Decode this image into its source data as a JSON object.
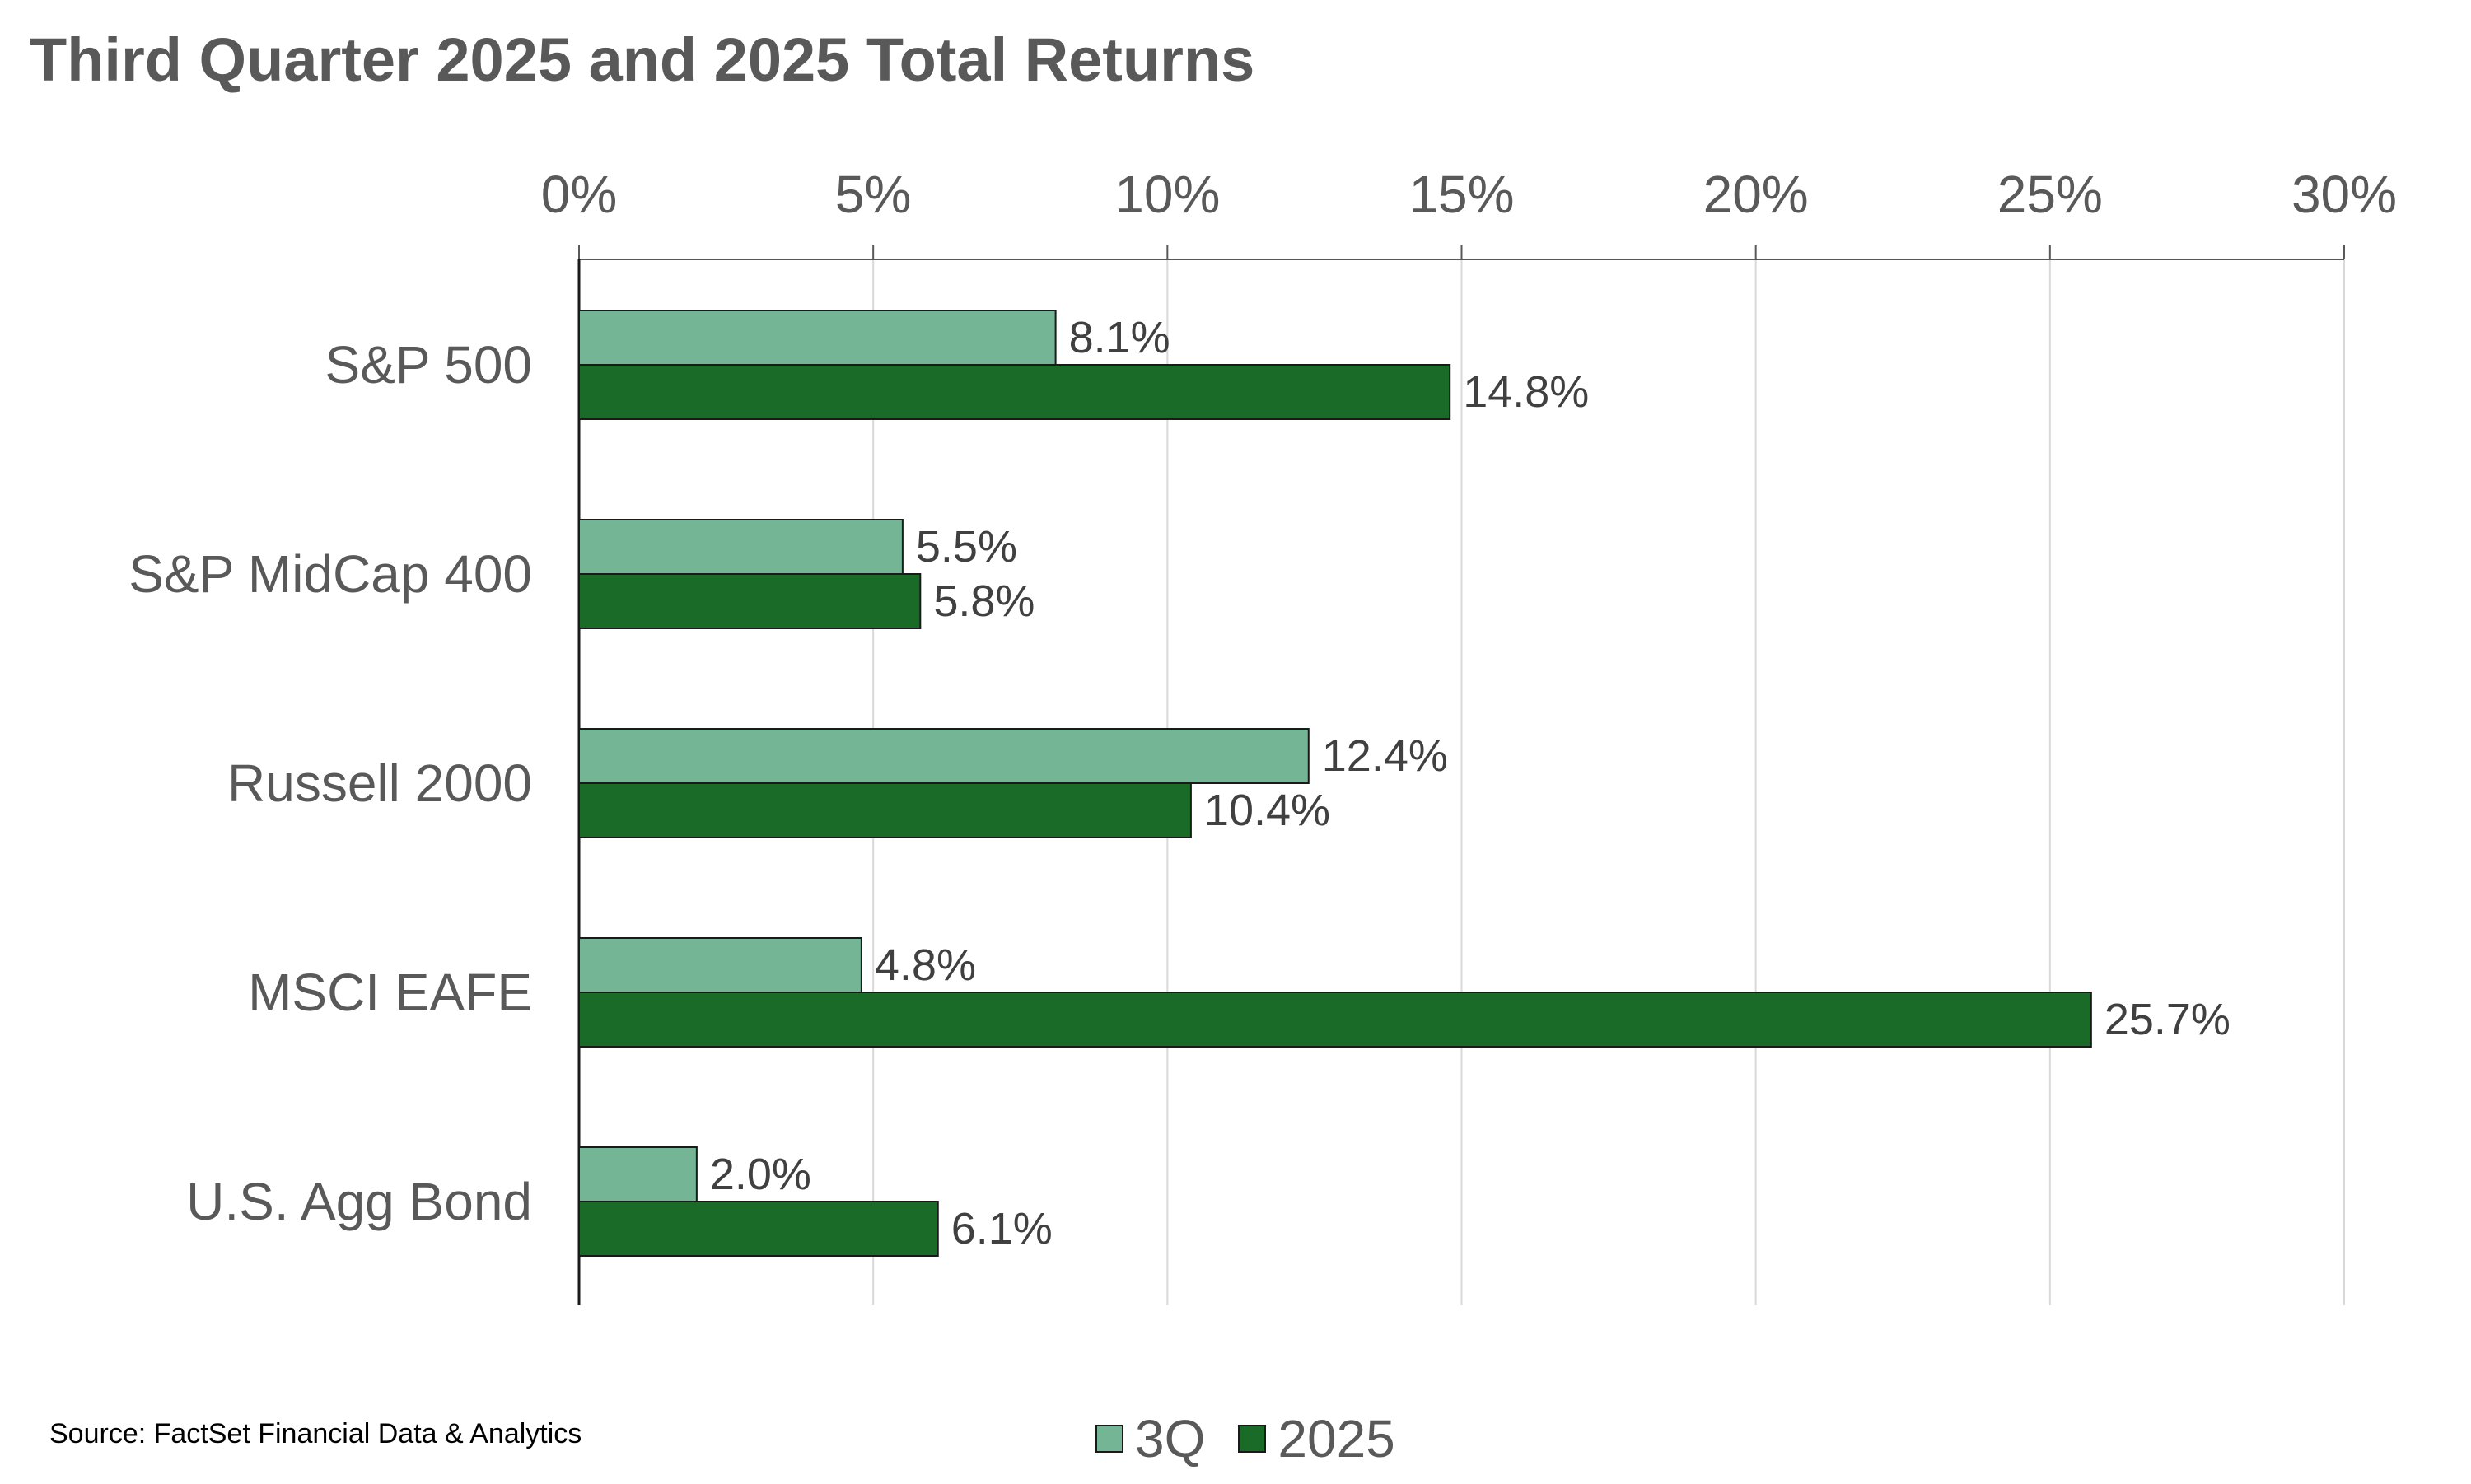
{
  "title": "Third Quarter 2025 and 2025 Total Returns",
  "source": "Source: FactSet Financial Data & Analytics",
  "chart_data": {
    "type": "bar",
    "orientation": "horizontal",
    "title": "Third Quarter 2025 and 2025 Total Returns",
    "categories": [
      "S&P 500",
      "S&P MidCap 400",
      "Russell 2000",
      "MSCI EAFE",
      "U.S. Agg Bond"
    ],
    "series": [
      {
        "name": "3Q",
        "values": [
          8.1,
          5.5,
          12.4,
          4.8,
          2.0
        ],
        "labels": [
          "8.1%",
          "5.5%",
          "12.4%",
          "4.8%",
          "2.0%"
        ],
        "color": "#74b595"
      },
      {
        "name": "2025",
        "values": [
          14.8,
          5.8,
          10.4,
          25.7,
          6.1
        ],
        "labels": [
          "14.8%",
          "5.8%",
          "10.4%",
          "25.7%",
          "6.1%"
        ],
        "color": "#1a6b28"
      }
    ],
    "xlim": [
      0,
      30
    ],
    "xticks": [
      0,
      5,
      10,
      15,
      20,
      25,
      30
    ],
    "xtick_labels": [
      "0%",
      "5%",
      "10%",
      "15%",
      "20%",
      "25%",
      "30%"
    ],
    "x_axis_position": "top",
    "grid": true,
    "legend": "bottom-center"
  }
}
